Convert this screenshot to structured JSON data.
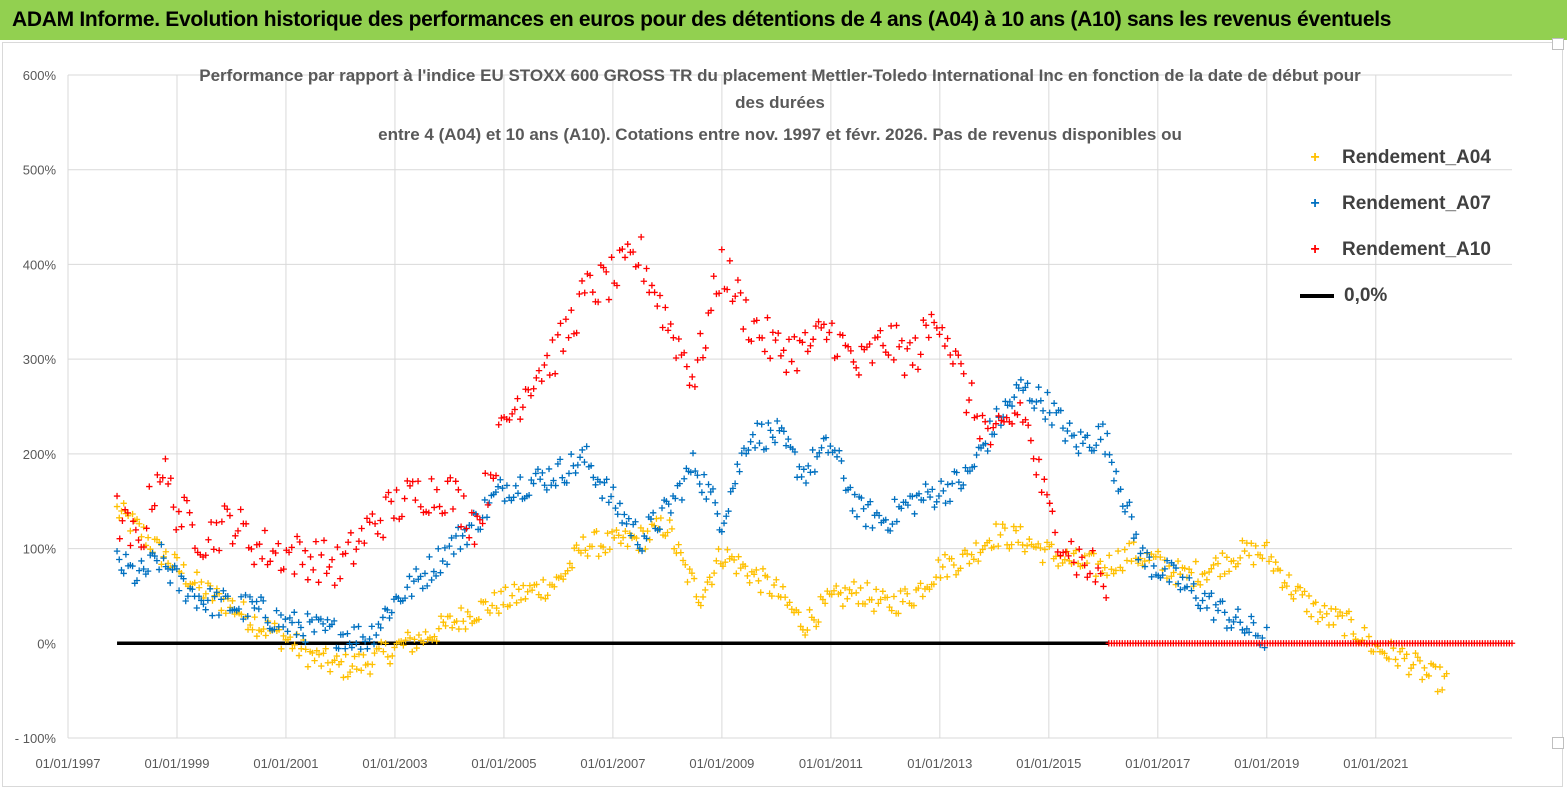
{
  "banner": {
    "title": "ADAM Informe. Evolution historique des performances en euros pour des détentions de 4 ans (A04) à 10 ans (A10) sans les revenus éventuels"
  },
  "chart_data": {
    "type": "scatter",
    "title_lines": [
      "Performance par rapport à l'indice EU STOXX 600 GROSS TR  du placement Mettler-Toledo International Inc en fonction de la date de début pour",
      "des durées",
      "entre 4 (A04) et 10 ans (A10). Cotations entre nov. 1997 et févr. 2026. Pas de revenus disponibles ou"
    ],
    "xlabel": "",
    "ylabel": "",
    "y_ticks": [
      "600%",
      "500%",
      "400%",
      "300%",
      "200%",
      "100%",
      "0%",
      "- 100%"
    ],
    "ylim": [
      -100,
      600
    ],
    "x_ticks": [
      "01/01/1997",
      "01/01/1999",
      "01/01/2001",
      "01/01/2003",
      "01/01/2005",
      "01/01/2007",
      "01/01/2009",
      "01/01/2011",
      "01/01/2013",
      "01/01/2015",
      "01/01/2017",
      "01/01/2019",
      "01/01/2021"
    ],
    "xlim": [
      1997.0,
      2023.5
    ],
    "legend_position": "top-right",
    "series": [
      {
        "name": "Rendement_A04",
        "color": "#ffc000",
        "x": [
          1997.9,
          1998.3,
          1998.7,
          1999.0,
          1999.5,
          2000.0,
          2000.5,
          2001.0,
          2001.5,
          2002.0,
          2002.5,
          2003.0,
          2003.5,
          2004.0,
          2004.5,
          2005.0,
          2005.5,
          2006.0,
          2006.5,
          2007.0,
          2007.5,
          2008.0,
          2008.3,
          2008.6,
          2009.0,
          2009.5,
          2010.0,
          2010.5,
          2011.0,
          2011.5,
          2012.0,
          2012.5,
          2013.0,
          2013.5,
          2014.0,
          2014.5,
          2015.0,
          2015.5,
          2016.0,
          2016.5,
          2017.0,
          2017.5,
          2018.0,
          2018.5,
          2019.0,
          2019.5,
          2020.0,
          2020.5,
          2021.0,
          2021.5,
          2022.0,
          2022.3
        ],
        "y": [
          140,
          120,
          95,
          80,
          55,
          40,
          20,
          5,
          -15,
          -25,
          -20,
          -5,
          5,
          20,
          35,
          45,
          55,
          65,
          105,
          105,
          110,
          125,
          80,
          50,
          95,
          75,
          55,
          20,
          45,
          55,
          40,
          50,
          80,
          90,
          115,
          110,
          95,
          85,
          80,
          95,
          85,
          70,
          80,
          95,
          95,
          55,
          30,
          20,
          -5,
          -15,
          -35,
          -40
        ]
      },
      {
        "name": "Rendement_A07",
        "color": "#0070c0",
        "x": [
          1997.9,
          1998.3,
          1998.7,
          1999.0,
          1999.5,
          2000.0,
          2000.5,
          2001.0,
          2001.5,
          2002.0,
          2002.5,
          2003.0,
          2003.5,
          2004.0,
          2004.5,
          2005.0,
          2005.5,
          2006.0,
          2006.5,
          2007.0,
          2007.5,
          2008.0,
          2008.5,
          2009.0,
          2009.5,
          2010.0,
          2010.5,
          2011.0,
          2011.5,
          2012.0,
          2012.5,
          2013.0,
          2013.5,
          2014.0,
          2014.5,
          2015.0,
          2015.5,
          2016.0,
          2016.3,
          2016.7,
          2017.0,
          2017.5,
          2018.0,
          2018.5,
          2019.0
        ],
        "y": [
          85,
          70,
          90,
          65,
          45,
          40,
          35,
          20,
          15,
          10,
          5,
          45,
          70,
          100,
          130,
          165,
          170,
          180,
          195,
          150,
          110,
          140,
          190,
          130,
          220,
          220,
          180,
          210,
          140,
          130,
          150,
          160,
          175,
          230,
          270,
          250,
          210,
          220,
          170,
          90,
          80,
          60,
          40,
          20,
          5
        ]
      },
      {
        "name": "Rendement_A10",
        "color": "#ff0000",
        "x": [
          1997.9,
          1998.3,
          1998.7,
          1999.0,
          1999.5,
          2000.0,
          2000.5,
          2001.0,
          2001.5,
          2002.0,
          2002.5,
          2003.0,
          2003.5,
          2004.0,
          2004.5,
          2005.0,
          2005.5,
          2006.0,
          2006.5,
          2007.0,
          2007.5,
          2008.0,
          2008.5,
          2009.0,
          2009.5,
          2010.0,
          2010.5,
          2011.0,
          2011.5,
          2012.0,
          2012.5,
          2013.0,
          2013.5,
          2014.0,
          2014.5,
          2015.0,
          2015.5,
          2016.0,
          2016.1,
          2017.0,
          2018.0,
          2019.0,
          2020.0,
          2021.0,
          2022.0,
          2023.0,
          2023.5
        ],
        "y": [
          135,
          100,
          190,
          140,
          110,
          130,
          100,
          95,
          90,
          80,
          120,
          145,
          160,
          160,
          125,
          230,
          280,
          310,
          370,
          385,
          410,
          340,
          280,
          400,
          340,
          310,
          310,
          330,
          290,
          320,
          300,
          350,
          260,
          210,
          250,
          135,
          90,
          70,
          0,
          0,
          0,
          0,
          0,
          0,
          0,
          0,
          0
        ]
      },
      {
        "name": "0,0%",
        "color": "#000000",
        "type": "line",
        "x": [
          1997.9,
          2016.1
        ],
        "y": [
          0,
          0
        ]
      }
    ]
  }
}
